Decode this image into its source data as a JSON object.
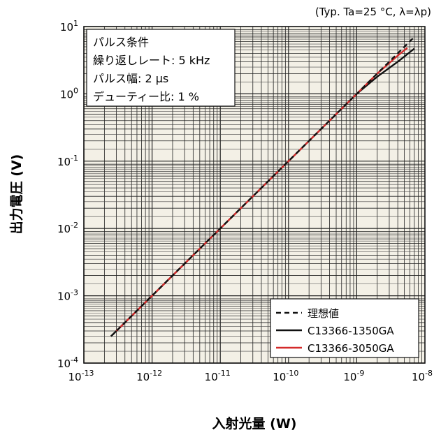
{
  "note": "(Typ. Ta=25 °C, λ=λp)",
  "chart_data": {
    "type": "line",
    "title": "",
    "xlabel": "入射光量 (W)",
    "ylabel": "出力電圧 (V)",
    "x_scale": "log",
    "y_scale": "log",
    "xlim": [
      1e-13,
      1e-08
    ],
    "ylim": [
      0.0001,
      10
    ],
    "x_tick_labels": [
      {
        "base": "10",
        "exp": "-13"
      },
      {
        "base": "10",
        "exp": "-12"
      },
      {
        "base": "10",
        "exp": "-11"
      },
      {
        "base": "10",
        "exp": "-10"
      },
      {
        "base": "10",
        "exp": "-9"
      },
      {
        "base": "10",
        "exp": "-8"
      }
    ],
    "y_tick_labels": [
      {
        "base": "10",
        "exp": "-4"
      },
      {
        "base": "10",
        "exp": "-3"
      },
      {
        "base": "10",
        "exp": "-2"
      },
      {
        "base": "10",
        "exp": "-1"
      },
      {
        "base": "10",
        "exp": "0"
      },
      {
        "base": "10",
        "exp": "1"
      }
    ],
    "grid": true,
    "background": "#f3f0e6",
    "conditions": [
      "パルス条件",
      "繰り返しレート: 5 kHz",
      "パルス幅: 2 μs",
      "デューティー比: 1 %"
    ],
    "legend_position": "bottom-right",
    "series": [
      {
        "name": "理想値",
        "style": "dashed",
        "color": "#111111",
        "points": [
          [
            2.5e-13,
            0.00025
          ],
          [
            7e-09,
            7
          ]
        ]
      },
      {
        "name": "C13366-1350GA",
        "style": "solid",
        "color": "#111111",
        "points": [
          [
            2.5e-13,
            0.00025
          ],
          [
            1e-11,
            0.01
          ],
          [
            1e-10,
            0.1
          ],
          [
            1e-09,
            1
          ],
          [
            2e-09,
            1.8
          ],
          [
            4e-09,
            3.0
          ],
          [
            7e-09,
            4.7
          ]
        ]
      },
      {
        "name": "C13366-3050GA",
        "style": "solid",
        "color": "#d42a2a",
        "points": [
          [
            3e-13,
            0.0003
          ],
          [
            1e-11,
            0.01
          ],
          [
            1e-10,
            0.1
          ],
          [
            1e-09,
            1
          ],
          [
            2e-09,
            2.0
          ],
          [
            4e-09,
            3.7
          ],
          [
            5.5e-09,
            4.8
          ]
        ]
      }
    ]
  }
}
